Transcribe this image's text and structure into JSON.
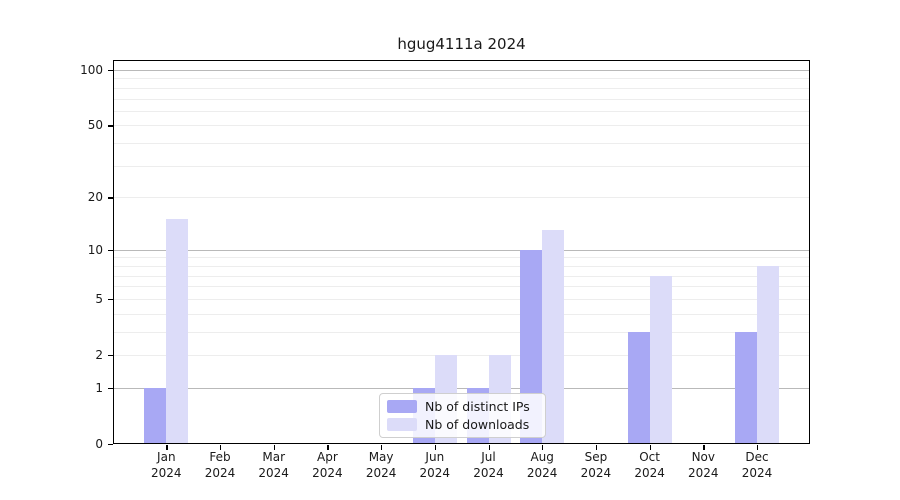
{
  "chart_data": {
    "type": "bar",
    "title": "hgug4111a 2024",
    "year_label": "2024",
    "categories": [
      "Jan",
      "Feb",
      "Mar",
      "Apr",
      "May",
      "Jun",
      "Jul",
      "Aug",
      "Sep",
      "Oct",
      "Nov",
      "Dec"
    ],
    "series": [
      {
        "name": "Nb of distinct IPs",
        "color": "#a8a8f4",
        "values": [
          1,
          0,
          0,
          0,
          0,
          1,
          1,
          10,
          0,
          3,
          0,
          3
        ]
      },
      {
        "name": "Nb of downloads",
        "color": "#dcdcf9",
        "values": [
          15,
          0,
          0,
          0,
          0,
          2,
          2,
          13,
          0,
          7,
          0,
          8
        ]
      }
    ],
    "xlabel": "",
    "ylabel": "",
    "y_scale": "log1p",
    "ylim": [
      0,
      100
    ],
    "y_ticks": [
      100,
      50,
      20,
      10,
      5,
      2,
      1,
      0
    ],
    "y_major_gridlines": [
      1,
      10,
      100
    ],
    "y_minor_gridlines": [
      2,
      3,
      4,
      5,
      6,
      7,
      8,
      9,
      20,
      30,
      40,
      50,
      60,
      70,
      80,
      90
    ],
    "grid": "horizontal",
    "legend_position": "bottom-center"
  },
  "colors": {
    "major_grid": "#b9b9b9",
    "minor_grid": "#ededed",
    "spine": "#000000",
    "text": "#1a1a1a"
  }
}
